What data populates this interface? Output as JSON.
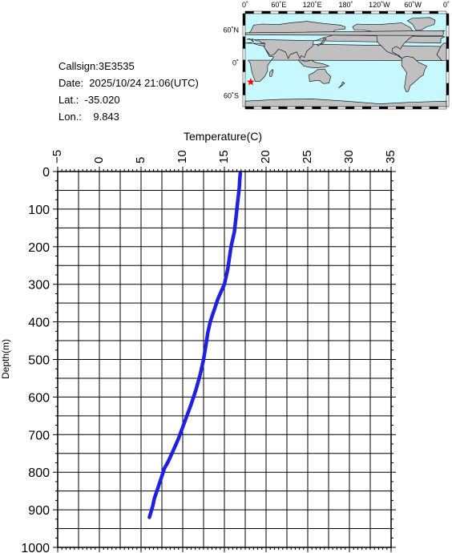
{
  "info": {
    "callsign": "Callsign:3E3535",
    "date": "Date:  2025/10/24 21:06(UTC)",
    "lat": "Lat.:  -35.020",
    "lon": "Lon.:    9.843"
  },
  "map": {
    "lon_labels": [
      "0˚",
      "60˚E",
      "120˚E",
      "180˚",
      "120˚W",
      "60˚W",
      "0˚"
    ],
    "lat_labels": [
      "60˚N",
      "0˚",
      "60˚S"
    ],
    "colors": {
      "ocean": "#c8f8ff",
      "land": "#c0c0c0",
      "marker": "#ff0000"
    },
    "station_lon": 9.843,
    "station_lat": -35.02,
    "marker_icon": "star-icon"
  },
  "chart_data": {
    "type": "line",
    "xlabel": "Temperature(C)",
    "ylabel": "Depth(m)",
    "xlim": [
      -5,
      35
    ],
    "ylim": [
      0,
      1000
    ],
    "y_inverted": true,
    "x_axis_position": "top",
    "grid": true,
    "xticks": [
      -5,
      0,
      5,
      10,
      15,
      20,
      25,
      30,
      35
    ],
    "yticks": [
      0,
      100,
      200,
      300,
      400,
      500,
      600,
      700,
      800,
      900,
      1000
    ],
    "series": [
      {
        "color": "#2020e0",
        "points": [
          {
            "t": 16.9,
            "d": 5
          },
          {
            "t": 16.85,
            "d": 20
          },
          {
            "t": 16.8,
            "d": 40
          },
          {
            "t": 16.7,
            "d": 60
          },
          {
            "t": 16.6,
            "d": 80
          },
          {
            "t": 16.5,
            "d": 100
          },
          {
            "t": 16.4,
            "d": 120
          },
          {
            "t": 16.3,
            "d": 140
          },
          {
            "t": 16.2,
            "d": 160
          },
          {
            "t": 16.0,
            "d": 180
          },
          {
            "t": 15.8,
            "d": 200
          },
          {
            "t": 15.6,
            "d": 230
          },
          {
            "t": 15.4,
            "d": 260
          },
          {
            "t": 15.2,
            "d": 280
          },
          {
            "t": 15.0,
            "d": 300
          },
          {
            "t": 14.6,
            "d": 320
          },
          {
            "t": 14.2,
            "d": 340
          },
          {
            "t": 13.9,
            "d": 360
          },
          {
            "t": 13.6,
            "d": 380
          },
          {
            "t": 13.3,
            "d": 400
          },
          {
            "t": 13.0,
            "d": 430
          },
          {
            "t": 12.8,
            "d": 460
          },
          {
            "t": 12.5,
            "d": 500
          },
          {
            "t": 12.1,
            "d": 540
          },
          {
            "t": 11.6,
            "d": 580
          },
          {
            "t": 11.0,
            "d": 620
          },
          {
            "t": 10.5,
            "d": 650
          },
          {
            "t": 10.0,
            "d": 680
          },
          {
            "t": 9.5,
            "d": 710
          },
          {
            "t": 8.9,
            "d": 740
          },
          {
            "t": 8.3,
            "d": 770
          },
          {
            "t": 7.8,
            "d": 790
          },
          {
            "t": 7.5,
            "d": 810
          },
          {
            "t": 7.2,
            "d": 830
          },
          {
            "t": 6.9,
            "d": 850
          },
          {
            "t": 6.6,
            "d": 870
          },
          {
            "t": 6.4,
            "d": 890
          },
          {
            "t": 6.2,
            "d": 905
          },
          {
            "t": 6.0,
            "d": 920
          }
        ]
      }
    ]
  }
}
